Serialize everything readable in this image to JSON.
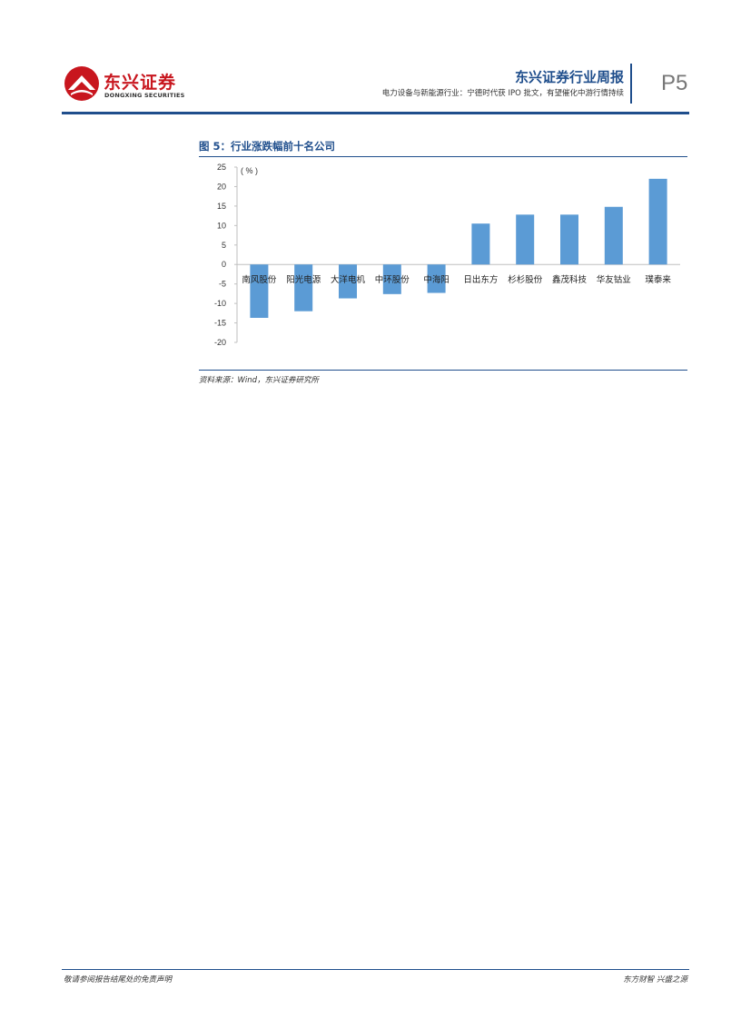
{
  "header": {
    "logo_cn": "东兴证券",
    "logo_en": "DONGXING SECURITIES",
    "report_title": "东兴证券行业周报",
    "report_subtitle": "电力设备与新能源行业：宁德时代获 IPO 批文，有望催化中游行情持续",
    "page_number": "P5"
  },
  "figure": {
    "title": "图 5：行业涨跌幅前十名公司",
    "source": "资料来源：Wind，东兴证券研究所"
  },
  "chart_data": {
    "type": "bar",
    "unit_label": "( % )",
    "categories": [
      "南风股份",
      "阳光电源",
      "大洋电机",
      "中环股份",
      "中海阳",
      "日出东方",
      "杉杉股份",
      "鑫茂科技",
      "华友钴业",
      "璞泰来"
    ],
    "values": [
      -13.7,
      -12.0,
      -8.7,
      -7.6,
      -7.3,
      10.5,
      12.8,
      12.8,
      14.8,
      22.0
    ],
    "ylim": [
      -20,
      25
    ],
    "yticks": [
      25,
      20,
      15,
      10,
      5,
      0,
      -5,
      -10,
      -15,
      -20
    ],
    "bar_color": "#5b9bd5",
    "grid": false,
    "legend": "none"
  },
  "footer": {
    "left": "敬请参阅报告结尾处的免责声明",
    "right": "东方财智 兴盛之源"
  }
}
